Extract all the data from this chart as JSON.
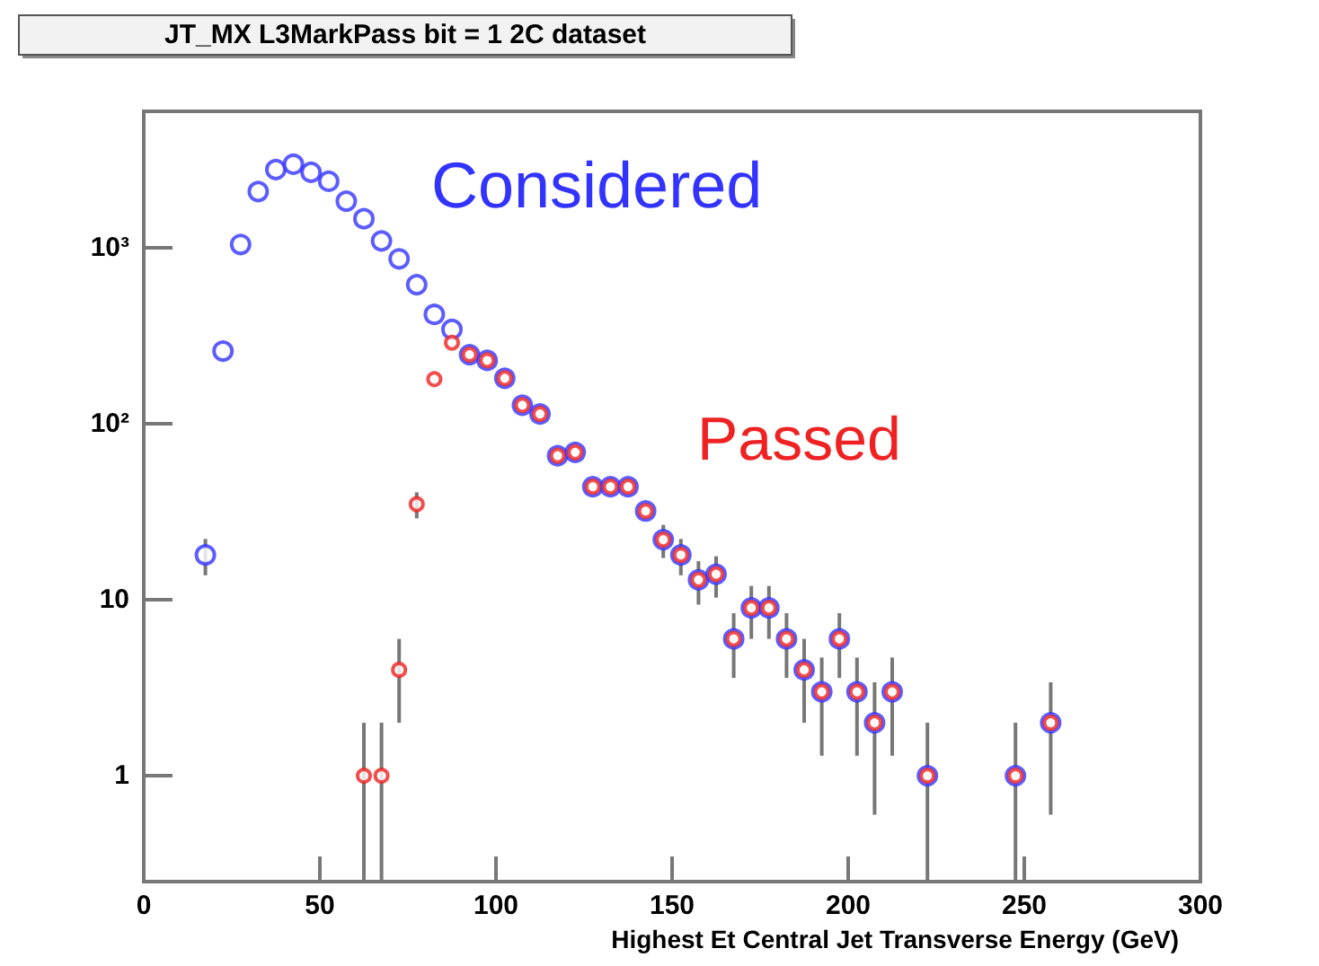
{
  "chart_data": {
    "type": "scatter",
    "title": "JT_MX L3MarkPass bit = 1 2C dataset",
    "xlabel": "Highest Et Central Jet Transverse Energy (GeV)",
    "x": [
      17.5,
      22.5,
      27.5,
      32.5,
      37.5,
      42.5,
      47.5,
      52.5,
      57.5,
      62.5,
      67.5,
      72.5,
      77.5,
      82.5,
      87.5,
      92.5,
      97.5,
      102.5,
      107.5,
      112.5,
      117.5,
      122.5,
      127.5,
      132.5,
      137.5,
      142.5,
      147.5,
      152.5,
      157.5,
      162.5,
      167.5,
      172.5,
      177.5,
      182.5,
      187.5,
      192.5,
      197.5,
      202.5,
      207.5,
      212.5,
      222.5,
      247.5,
      257.5
    ],
    "series": [
      {
        "name": "Considered",
        "color": "#3333ff",
        "values": [
          18,
          260,
          1050,
          2100,
          2800,
          3000,
          2700,
          2400,
          1850,
          1470,
          1100,
          870,
          620,
          420,
          345,
          248,
          230,
          182,
          128,
          114,
          66,
          69,
          44,
          44,
          44,
          32,
          22,
          18,
          13,
          14,
          6,
          9,
          9,
          6,
          4,
          3,
          6,
          3,
          2,
          3,
          1,
          1,
          2
        ],
        "errors": [
          4.2,
          null,
          null,
          null,
          null,
          null,
          null,
          null,
          null,
          null,
          null,
          null,
          null,
          null,
          null,
          null,
          null,
          null,
          null,
          null,
          null,
          null,
          null,
          null,
          null,
          null,
          null,
          null,
          null,
          null,
          null,
          null,
          null,
          null,
          null,
          null,
          null,
          null,
          null,
          null,
          null,
          null,
          null
        ]
      },
      {
        "name": "Passed",
        "color": "#ee2222",
        "x": [
          62.5,
          67.5,
          72.5,
          77.5,
          82.5,
          87.5,
          92.5,
          97.5,
          102.5,
          107.5,
          112.5,
          117.5,
          122.5,
          127.5,
          132.5,
          137.5,
          142.5,
          147.5,
          152.5,
          157.5,
          162.5,
          167.5,
          172.5,
          177.5,
          182.5,
          187.5,
          192.5,
          197.5,
          202.5,
          207.5,
          212.5,
          222.5,
          247.5,
          257.5
        ],
        "values": [
          1,
          1,
          4,
          35,
          180,
          290,
          248,
          230,
          182,
          128,
          114,
          66,
          69,
          44,
          44,
          44,
          32,
          22,
          18,
          13,
          14,
          6,
          9,
          9,
          6,
          4,
          3,
          6,
          3,
          2,
          3,
          1,
          1,
          2
        ],
        "errors": [
          [
            0.25,
            2
          ],
          [
            0.25,
            2
          ],
          2,
          5.9,
          null,
          null,
          null,
          null,
          null,
          null,
          null,
          null,
          null,
          null,
          null,
          null,
          null,
          4.7,
          4.2,
          3.6,
          3.7,
          2.4,
          3,
          3,
          2.4,
          2,
          1.7,
          2.4,
          1.7,
          1.4,
          1.7,
          [
            0.25,
            2
          ],
          [
            0.25,
            2
          ],
          1.4
        ]
      }
    ],
    "xlim": [
      0,
      300
    ],
    "xticks": [
      0,
      50,
      100,
      150,
      200,
      250,
      300
    ],
    "log": "y",
    "ylim": [
      0.25,
      6000
    ],
    "yticks": [
      1,
      10,
      {
        "value": 100,
        "label": "10²"
      },
      {
        "value": 1000,
        "label": "10³"
      }
    ],
    "marker": "circle",
    "grid": false,
    "legend": false
  }
}
